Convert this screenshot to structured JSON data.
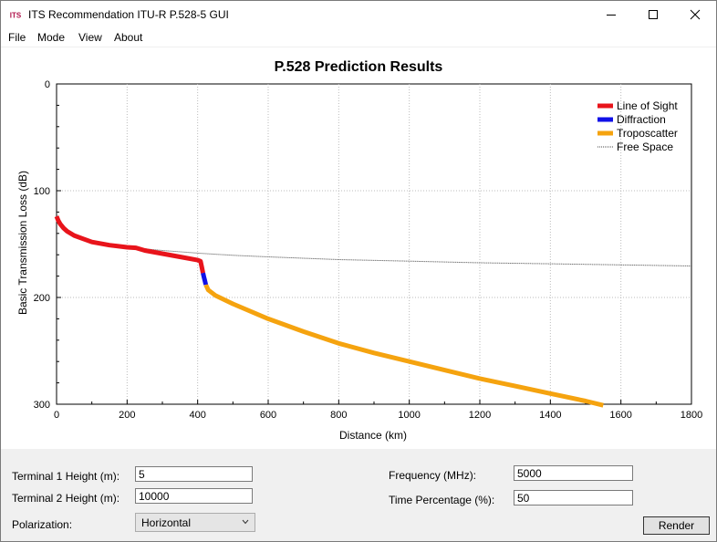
{
  "window": {
    "title": "ITS Recommendation ITU-R P.528-5 GUI",
    "icon_text": "ITS"
  },
  "menu": [
    "File",
    "Mode",
    "View",
    "About"
  ],
  "chart_data": {
    "type": "line",
    "title": "P.528 Prediction Results",
    "xlabel": "Distance (km)",
    "ylabel": "Basic Transmission Loss (dB)",
    "xlim": [
      0,
      1800
    ],
    "ylim": [
      0,
      300
    ],
    "y_inverted": true,
    "x_ticks": [
      0,
      200,
      400,
      600,
      800,
      1000,
      1200,
      1400,
      1600,
      1800
    ],
    "y_ticks": [
      0,
      100,
      200,
      300
    ],
    "grid": true,
    "legend_position": "top-right",
    "series": [
      {
        "name": "Line of Sight",
        "color": "#e8141b",
        "style": "solid-thick",
        "x": [
          0,
          5,
          10,
          20,
          30,
          50,
          75,
          100,
          150,
          200,
          225,
          250,
          300,
          350,
          400,
          408,
          412,
          415
        ],
        "y": [
          124,
          128,
          131,
          135,
          138,
          142,
          145,
          148,
          151,
          153,
          153.5,
          156,
          159,
          162,
          165,
          166,
          172,
          177
        ]
      },
      {
        "name": "Diffraction",
        "color": "#1010e8",
        "style": "solid-thick",
        "x": [
          415,
          418,
          421,
          423
        ],
        "y": [
          177,
          181,
          185,
          188
        ]
      },
      {
        "name": "Troposcatter",
        "color": "#f5a30f",
        "style": "solid-thick",
        "x": [
          423,
          430,
          450,
          500,
          600,
          700,
          800,
          900,
          1000,
          1100,
          1200,
          1300,
          1400,
          1500,
          1550
        ],
        "y": [
          188,
          193,
          198,
          206,
          220,
          232,
          243,
          252,
          260,
          268,
          276,
          283,
          290,
          297,
          301
        ]
      },
      {
        "name": "Free Space",
        "color": "#444444",
        "style": "dotted-thin",
        "x": [
          0,
          5,
          10,
          20,
          50,
          100,
          200,
          300,
          400,
          500,
          600,
          800,
          1000,
          1200,
          1400,
          1600,
          1800
        ],
        "y": [
          124,
          128,
          131,
          136,
          143,
          148,
          153,
          156,
          158.5,
          160.5,
          162,
          164.5,
          166,
          167.5,
          168.5,
          169.5,
          170.5
        ]
      }
    ]
  },
  "form": {
    "terminal1_label": "Terminal 1 Height (m):",
    "terminal1_value": "5",
    "terminal2_label": "Terminal 2 Height (m):",
    "terminal2_value": "10000",
    "polarization_label": "Polarization:",
    "polarization_value": "Horizontal",
    "frequency_label": "Frequency (MHz):",
    "frequency_value": "5000",
    "time_label": "Time Percentage (%):",
    "time_value": "50",
    "render_label": "Render"
  }
}
